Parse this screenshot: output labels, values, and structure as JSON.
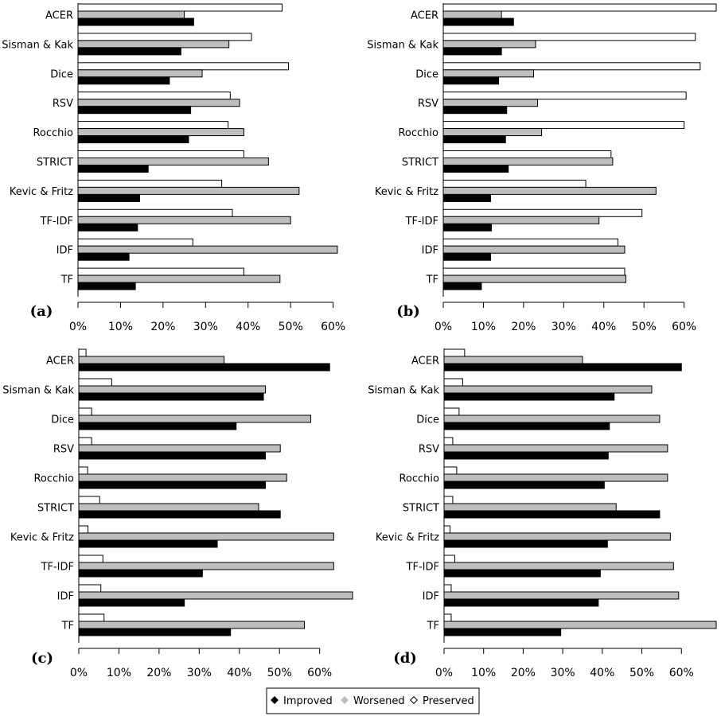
{
  "chart_data": [
    {
      "type": "bar",
      "panel": "(a)",
      "categories": [
        "ACER",
        "Sisman & Kak",
        "Dice",
        "RSV",
        "Rocchio",
        "STRICT",
        "Kevic & Fritz",
        "TF-IDF",
        "IDF",
        "TF"
      ],
      "series": [
        {
          "name": "Improved",
          "values": [
            27.2,
            24.2,
            21.5,
            26.5,
            26.0,
            16.5,
            14.5,
            14.0,
            12.0,
            13.5
          ]
        },
        {
          "name": "Worsened",
          "values": [
            25.0,
            35.5,
            29.2,
            38.0,
            39.0,
            44.8,
            52.0,
            50.0,
            61.0,
            47.5
          ]
        },
        {
          "name": "Preserved",
          "values": [
            48.0,
            40.8,
            49.5,
            35.8,
            35.3,
            39.0,
            33.8,
            36.3,
            27.0,
            39.0
          ]
        }
      ],
      "xlim": [
        0,
        64
      ],
      "ticks": [
        "0%",
        "10%",
        "20%",
        "30%",
        "40%",
        "50%",
        "60%"
      ]
    },
    {
      "type": "bar",
      "panel": "(b)",
      "categories": [
        "ACER",
        "Sisman & Kak",
        "Dice",
        "RSV",
        "Rocchio",
        "STRICT",
        "Kevic & Fritz",
        "TF-IDF",
        "IDF",
        "TF"
      ],
      "series": [
        {
          "name": "Improved",
          "values": [
            17.5,
            14.5,
            13.8,
            15.8,
            15.5,
            16.2,
            11.8,
            12.0,
            11.8,
            9.5
          ]
        },
        {
          "name": "Worsened",
          "values": [
            14.5,
            23.0,
            22.5,
            23.5,
            24.5,
            42.2,
            53.0,
            38.8,
            45.2,
            45.5
          ]
        },
        {
          "name": "Preserved",
          "values": [
            68.0,
            62.8,
            64.0,
            60.5,
            60.0,
            41.8,
            35.5,
            49.5,
            43.5,
            45.2
          ]
        }
      ],
      "xlim": [
        0,
        68
      ],
      "ticks": [
        "0%",
        "10%",
        "20%",
        "30%",
        "40%",
        "50%",
        "60%"
      ]
    },
    {
      "type": "bar",
      "panel": "(c)",
      "categories": [
        "ACER",
        "Sisman & Kak",
        "Dice",
        "RSV",
        "Rocchio",
        "STRICT",
        "Kevic & Fritz",
        "TF-IDF",
        "IDF",
        "TF"
      ],
      "series": [
        {
          "name": "Improved",
          "values": [
            62.5,
            46.0,
            39.2,
            46.5,
            46.5,
            50.2,
            34.5,
            30.8,
            26.3,
            37.8
          ]
        },
        {
          "name": "Worsened",
          "values": [
            36.2,
            46.5,
            57.8,
            50.2,
            51.8,
            44.8,
            63.5,
            63.5,
            68.2,
            56.2
          ]
        },
        {
          "name": "Preserved",
          "values": [
            1.8,
            8.2,
            3.2,
            3.2,
            2.2,
            5.2,
            2.3,
            6.0,
            5.5,
            6.3
          ]
        }
      ],
      "xlim": [
        0,
        68
      ],
      "ticks": [
        "0%",
        "10%",
        "20%",
        "30%",
        "40%",
        "50%",
        "60%"
      ]
    },
    {
      "type": "bar",
      "panel": "(d)",
      "categories": [
        "ACER",
        "Sisman & Kak",
        "Dice",
        "RSV",
        "Rocchio",
        "STRICT",
        "Kevic & Fritz",
        "TF-IDF",
        "IDF",
        "TF"
      ],
      "series": [
        {
          "name": "Improved",
          "values": [
            60.0,
            43.0,
            41.8,
            41.5,
            40.5,
            54.5,
            41.3,
            39.5,
            39.0,
            29.5
          ]
        },
        {
          "name": "Worsened",
          "values": [
            35.0,
            52.5,
            54.5,
            56.5,
            56.5,
            43.5,
            57.2,
            58.0,
            59.3,
            68.8
          ]
        },
        {
          "name": "Preserved",
          "values": [
            5.2,
            4.7,
            3.8,
            2.2,
            3.2,
            2.2,
            1.5,
            2.7,
            1.8,
            1.8
          ]
        }
      ],
      "xlim": [
        0,
        69
      ],
      "ticks": [
        "0%",
        "10%",
        "20%",
        "30%",
        "40%",
        "50%",
        "60%"
      ]
    }
  ],
  "legend": {
    "items": [
      {
        "name": "Improved"
      },
      {
        "name": "Worsened"
      },
      {
        "name": "Preserved"
      }
    ]
  },
  "colors": {
    "Improved": "#000000",
    "Worsened": "#bebebe",
    "Preserved": "#ffffff",
    "outline": "#000000"
  }
}
